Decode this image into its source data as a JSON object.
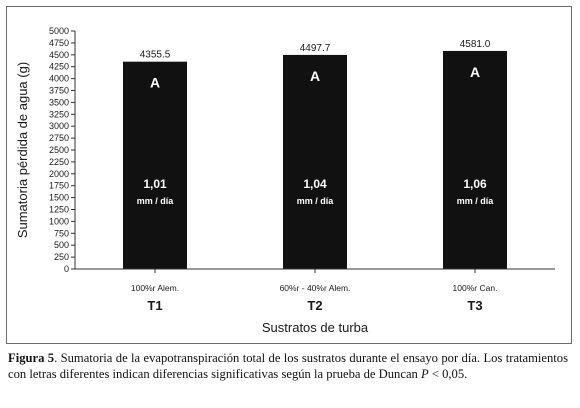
{
  "chart_data": {
    "type": "bar",
    "title": "",
    "xlabel": "Sustratos de turba",
    "ylabel": "Sumatoria pérdida de agua (g)",
    "ylim": [
      0,
      5000
    ],
    "yticks": [
      0,
      250,
      500,
      750,
      1000,
      1250,
      1500,
      1750,
      2000,
      2250,
      2500,
      2750,
      3000,
      3250,
      3500,
      3750,
      4000,
      4250,
      4500,
      4750,
      5000
    ],
    "ytick_labels": [
      "0",
      "250",
      "500",
      "750",
      "1000",
      "1250",
      "1500",
      "1750",
      "2000",
      "2250",
      "2500",
      "2750",
      "3000",
      "3250",
      "3500",
      "3750",
      "4000",
      "4250",
      "4500",
      "4750",
      "5000"
    ],
    "grid": false,
    "legend": "none",
    "bar_color": "#111111",
    "inner_text_color": "#ffffff",
    "categories": [
      "T1",
      "T2",
      "T3"
    ],
    "category_descriptions": [
      "100%r Alem.",
      "60%r - 40%r Alem.",
      "100%r Can."
    ],
    "values": [
      4355.5,
      4497.7,
      4581.0
    ],
    "value_labels": [
      "4355.5",
      "4497.7",
      "4581.0"
    ],
    "significance_letters": [
      "A",
      "A",
      "A"
    ],
    "rate_values": [
      "1,01",
      "1,04",
      "1,06"
    ],
    "rate_unit": "mm / día"
  },
  "caption": {
    "label": "Figura 5",
    "text_before_p": ". Sumatoria de la evapotranspiración total de los sustratos durante el ensayo por día. Los tratamientos con letras diferentes indican diferencias significativas según la prueba de Duncan ",
    "p_symbol": "P",
    "text_after_p": " < 0,05."
  }
}
